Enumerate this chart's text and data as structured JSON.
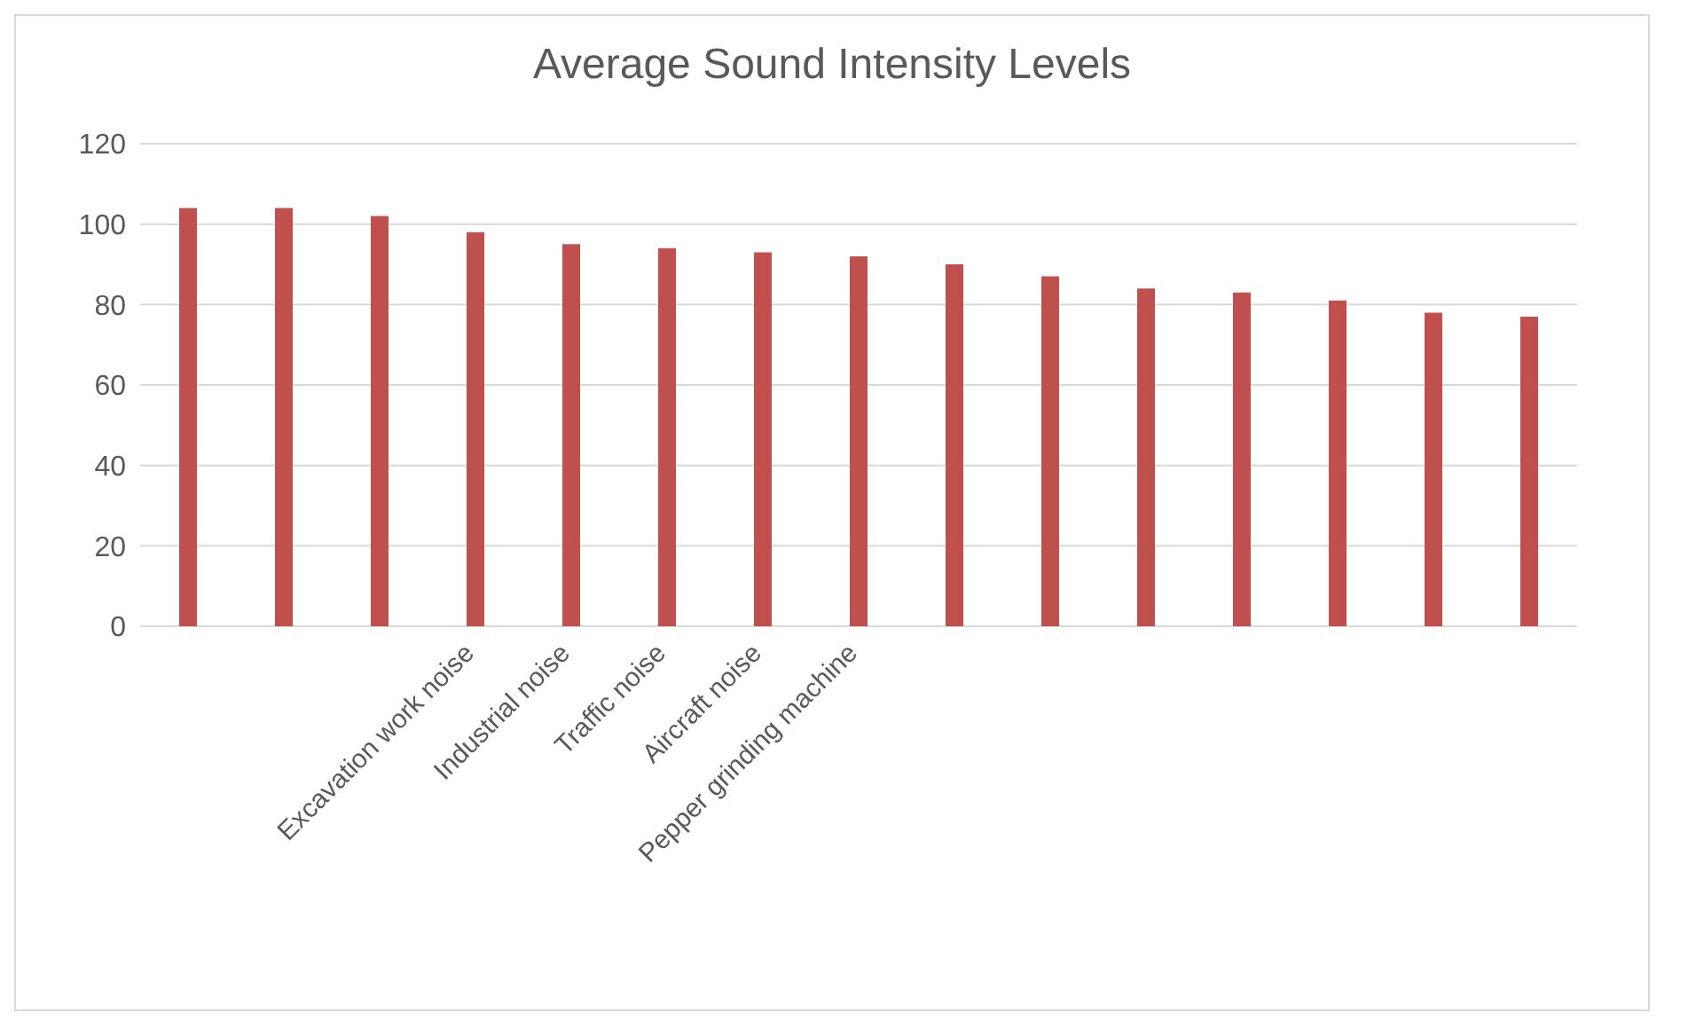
{
  "chart_data": {
    "type": "bar",
    "title": "Average Sound Intensity Levels",
    "categories": [
      null,
      null,
      null,
      "Excavation work noise",
      "Industrial noise",
      "Traffic noise",
      "Aircraft noise",
      "Pepper grinding machine",
      null,
      null,
      null,
      null,
      null,
      null,
      null
    ],
    "values": [
      104,
      104,
      102,
      98,
      95,
      94,
      93,
      92,
      90,
      87,
      84,
      83,
      81,
      78,
      77
    ],
    "color": "#c0504d",
    "ylim": [
      0,
      120
    ],
    "yticks": [
      0,
      20,
      40,
      60,
      80,
      100,
      120
    ],
    "grid": "y"
  }
}
